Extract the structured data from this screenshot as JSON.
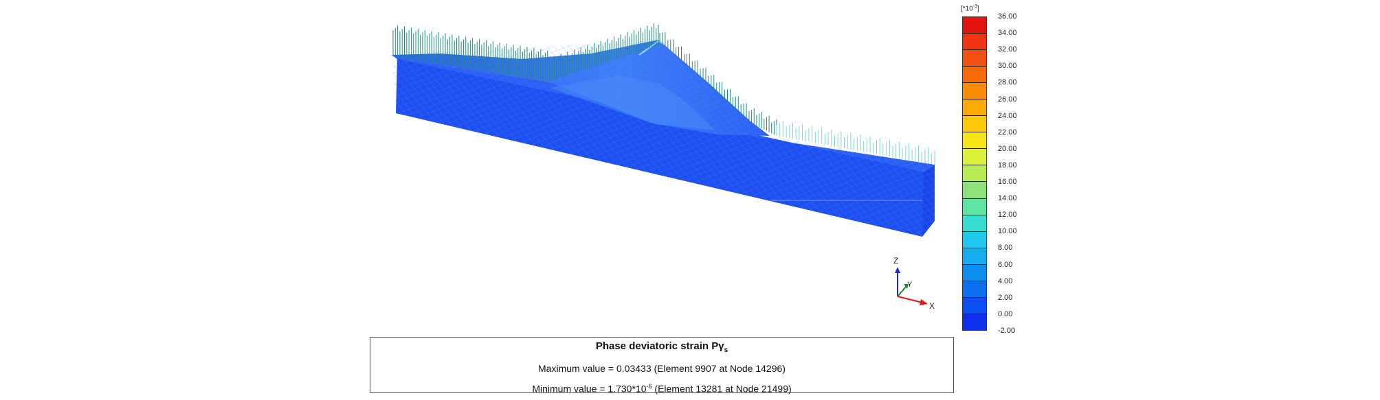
{
  "legend": {
    "unit_prefix": "[*10",
    "unit_exp": "-3",
    "unit_suffix": "]",
    "ticks": [
      "36.00",
      "34.00",
      "32.00",
      "30.00",
      "28.00",
      "26.00",
      "24.00",
      "22.00",
      "20.00",
      "18.00",
      "16.00",
      "14.00",
      "12.00",
      "10.00",
      "8.00",
      "6.00",
      "4.00",
      "2.00",
      "0.00",
      "-2.00"
    ],
    "colors": [
      "#e2140f",
      "#ef3414",
      "#f24f12",
      "#f76a0c",
      "#fa8c08",
      "#fbaa07",
      "#fbc80a",
      "#f4e619",
      "#dcf23a",
      "#b7ec55",
      "#8ee27c",
      "#5fe5a3",
      "#39ded2",
      "#22c9ef",
      "#16acef",
      "#0f8ded",
      "#0c6ff0",
      "#0a4fef",
      "#0d30ea"
    ]
  },
  "axes": {
    "z": "Z",
    "y": "Y",
    "x": "X"
  },
  "info": {
    "title_text": "Phase deviatoric strain Pγ",
    "title_sub": "s",
    "max_line": "Maximum value = 0.03433  (Element 9907 at Node 14296)",
    "min_prefix": "Minimum value = 1.730*10",
    "min_exp": "-6",
    "min_suffix": "  (Element 13281 at Node 21499)"
  },
  "model_colors": {
    "base": "#1a4ff0",
    "front": "#2356f2",
    "top": "#2e66f5",
    "embankment_light": "#3a78f6",
    "arrows": "#1f8a7a",
    "arrows_light": "#7fd6cf"
  }
}
